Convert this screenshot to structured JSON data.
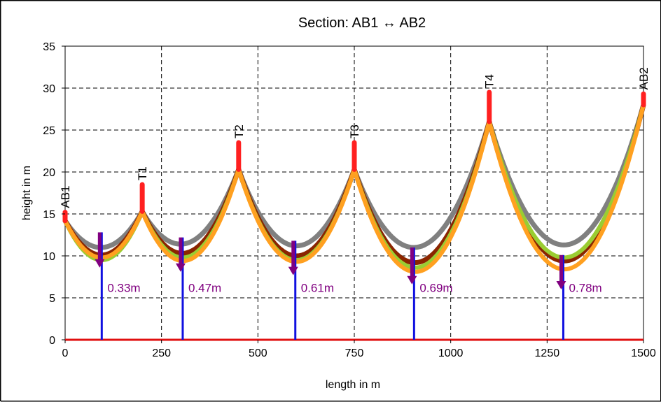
{
  "chart_data": {
    "type": "line",
    "title": "Section: AB1 ↔ AB2",
    "xlabel": "length in m",
    "ylabel": "height in m",
    "xlim": [
      0,
      1500
    ],
    "ylim": [
      0,
      35
    ],
    "xticks": [
      0,
      250,
      500,
      750,
      1000,
      1250,
      1500
    ],
    "yticks": [
      0,
      5,
      10,
      15,
      20,
      25,
      30,
      35
    ],
    "grid": true,
    "supports": [
      {
        "name": "AB1",
        "x": 0,
        "base": 14.2,
        "top": 15.2
      },
      {
        "name": "T1",
        "x": 200,
        "base": 15.3,
        "top": 18.5
      },
      {
        "name": "T2",
        "x": 450,
        "base": 20.3,
        "top": 23.5
      },
      {
        "name": "T3",
        "x": 750,
        "base": 20.3,
        "top": 23.5
      },
      {
        "name": "T4",
        "x": 1100,
        "base": 26.0,
        "top": 29.5
      },
      {
        "name": "AB2",
        "x": 1500,
        "base": 28.0,
        "top": 29.3
      }
    ],
    "spans": [
      {
        "x0": 0,
        "y0": 14.2,
        "x1": 200,
        "y1": 15.3,
        "low": {
          "grey": 11.0,
          "brown": 10.1,
          "green": 9.5,
          "orange": 9.8
        }
      },
      {
        "x0": 200,
        "y0": 15.3,
        "x1": 450,
        "y1": 20.3,
        "low": {
          "grey": 11.4,
          "brown": 10.3,
          "green": 9.8,
          "orange": 9.4
        }
      },
      {
        "x0": 450,
        "y0": 20.3,
        "x1": 750,
        "y1": 20.3,
        "low": {
          "grey": 11.2,
          "brown": 10.0,
          "green": 9.5,
          "orange": 9.3
        }
      },
      {
        "x0": 750,
        "y0": 20.3,
        "x1": 1100,
        "y1": 26.0,
        "low": {
          "grey": 11.0,
          "brown": 9.2,
          "green": 8.6,
          "orange": 8.1
        }
      },
      {
        "x0": 1100,
        "y0": 26.0,
        "x1": 1500,
        "y1": 28.0,
        "low": {
          "grey": 11.3,
          "brown": 9.4,
          "green": 9.8,
          "orange": 8.4
        }
      }
    ],
    "sags": [
      {
        "x": 95,
        "label": "0.33m",
        "y_top": 12.8,
        "y_tip": 8.6
      },
      {
        "x": 305,
        "label": "0.47m",
        "y_top": 12.2,
        "y_tip": 8.1
      },
      {
        "x": 597,
        "label": "0.61m",
        "y_top": 11.8,
        "y_tip": 7.7
      },
      {
        "x": 905,
        "label": "0.69m",
        "y_top": 11.0,
        "y_tip": 6.6
      },
      {
        "x": 1292,
        "label": "0.78m",
        "y_top": 10.1,
        "y_tip": 6.0
      }
    ],
    "colors": {
      "grey": "#808080",
      "brown": "#8b2500",
      "green": "#9acd32",
      "orange": "#ffa020",
      "support": "#ff2020",
      "ground": "#e01010",
      "sag_line": "#1010e0",
      "sag_arrow": "#800080",
      "sag_text": "#800080",
      "grid": "#000000"
    }
  }
}
